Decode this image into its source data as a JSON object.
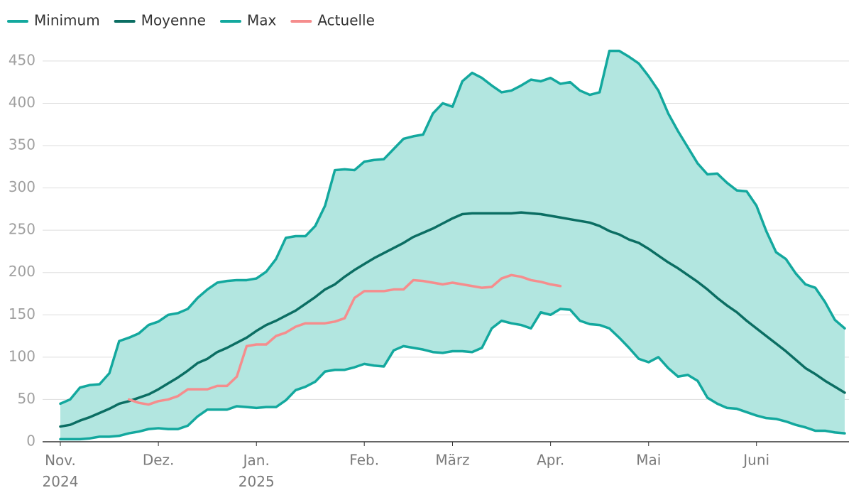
{
  "chart_data": {
    "type": "line",
    "categories": [
      "Nov.\n2024",
      null,
      null,
      null,
      null,
      null,
      null,
      null,
      null,
      null,
      "Dez.",
      null,
      null,
      null,
      null,
      null,
      null,
      null,
      null,
      null,
      "Jan.\n2025",
      null,
      null,
      null,
      null,
      null,
      null,
      null,
      null,
      null,
      null,
      "Feb.",
      null,
      null,
      null,
      null,
      null,
      null,
      null,
      null,
      "März",
      null,
      null,
      null,
      null,
      null,
      null,
      null,
      null,
      null,
      "Apr.",
      null,
      null,
      null,
      null,
      null,
      null,
      null,
      null,
      null,
      "Mai",
      null,
      null,
      null,
      null,
      null,
      null,
      null,
      null,
      null,
      null,
      "Juni",
      null,
      null,
      null,
      null,
      null,
      null,
      null,
      null,
      null
    ],
    "series": [
      {
        "name": "Minimum",
        "color": "#13a89e",
        "values": [
          3,
          3,
          3,
          4,
          6,
          6,
          7,
          10,
          12,
          15,
          16,
          15,
          15,
          19,
          30,
          38,
          38,
          38,
          42,
          41,
          40,
          41,
          41,
          49,
          61,
          65,
          71,
          83,
          85,
          85,
          88,
          92,
          90,
          89,
          108,
          113,
          111,
          109,
          106,
          105,
          107,
          107,
          106,
          111,
          134,
          143,
          140,
          138,
          134,
          153,
          150,
          157,
          156,
          143,
          139,
          138,
          134,
          123,
          111,
          98,
          94,
          100,
          87,
          77,
          79,
          72,
          52,
          45,
          40,
          39,
          35,
          31,
          28,
          27,
          24,
          20,
          17,
          13,
          13,
          11,
          10
        ]
      },
      {
        "name": "Moyenne",
        "color": "#0b6e63",
        "values": [
          18,
          20,
          25,
          29,
          34,
          39,
          45,
          48,
          52,
          56,
          62,
          69,
          76,
          84,
          93,
          98,
          106,
          111,
          117,
          123,
          131,
          138,
          143,
          149,
          155,
          163,
          171,
          180,
          186,
          195,
          203,
          210,
          217,
          223,
          229,
          235,
          242,
          247,
          252,
          258,
          264,
          269,
          270,
          270,
          270,
          270,
          270,
          271,
          270,
          269,
          267,
          265,
          263,
          261,
          259,
          255,
          249,
          245,
          239,
          235,
          228,
          220,
          212,
          205,
          197,
          189,
          180,
          170,
          161,
          153,
          143,
          134,
          125,
          116,
          107,
          97,
          87,
          80,
          72,
          65,
          58
        ]
      },
      {
        "name": "Max",
        "color": "#13a89e",
        "values": [
          45,
          50,
          64,
          67,
          68,
          81,
          119,
          123,
          128,
          138,
          142,
          150,
          152,
          157,
          170,
          180,
          188,
          190,
          191,
          191,
          193,
          201,
          216,
          241,
          243,
          243,
          255,
          279,
          321,
          322,
          321,
          331,
          333,
          334,
          346,
          358,
          361,
          363,
          388,
          400,
          396,
          426,
          436,
          430,
          421,
          413,
          415,
          421,
          428,
          426,
          430,
          423,
          425,
          415,
          410,
          413,
          462,
          462,
          455,
          447,
          432,
          415,
          388,
          367,
          348,
          329,
          316,
          317,
          306,
          297,
          296,
          279,
          249,
          224,
          216,
          199,
          186,
          182,
          165,
          144,
          134
        ]
      },
      {
        "name": "Actuelle",
        "color": "#f58d8d",
        "values": [
          null,
          null,
          null,
          null,
          null,
          null,
          null,
          50,
          46,
          44,
          48,
          50,
          54,
          62,
          62,
          62,
          66,
          66,
          77,
          113,
          115,
          115,
          125,
          129,
          136,
          140,
          140,
          140,
          142,
          146,
          170,
          178,
          178,
          178,
          180,
          180,
          191,
          190,
          188,
          186,
          188,
          186,
          184,
          182,
          183,
          193,
          197,
          195,
          191,
          189,
          186,
          184,
          null,
          null,
          null,
          null,
          null,
          null,
          null,
          null,
          null,
          null,
          null,
          null,
          null,
          null,
          null,
          null,
          null,
          null,
          null,
          null,
          null,
          null,
          null,
          null,
          null,
          null,
          null,
          null,
          null
        ]
      }
    ],
    "band_color": "#b2e6e0",
    "ylim": [
      0,
      465
    ],
    "yticks": [
      0,
      50,
      100,
      150,
      200,
      250,
      300,
      350,
      400,
      450
    ],
    "grid": true
  }
}
